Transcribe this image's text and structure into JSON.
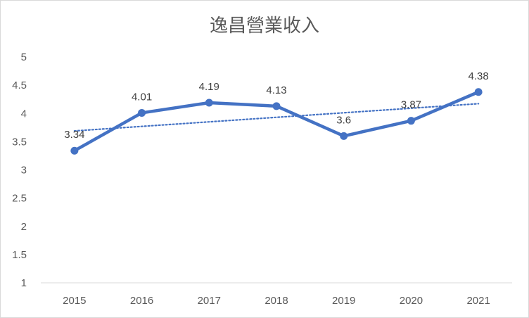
{
  "chart_data": {
    "type": "line",
    "title": "逸昌營業收入",
    "xlabel": "",
    "ylabel": "",
    "categories": [
      "2015",
      "2016",
      "2017",
      "2018",
      "2019",
      "2020",
      "2021"
    ],
    "series": [
      {
        "values": [
          3.34,
          4.01,
          4.19,
          4.13,
          3.6,
          3.87,
          4.38
        ],
        "data_labels": [
          "3.34",
          "4.01",
          "4.19",
          "4.13",
          "3.6",
          "3.87",
          "4.38"
        ],
        "color": "#4472c4"
      }
    ],
    "trendline": {
      "type": "linear",
      "style": "dotted",
      "color": "#4472c4"
    },
    "ylim": [
      1,
      5
    ],
    "yticks": [
      "1",
      "1.5",
      "2",
      "2.5",
      "3",
      "3.5",
      "4",
      "4.5",
      "5"
    ],
    "grid": false,
    "legend": "none"
  }
}
